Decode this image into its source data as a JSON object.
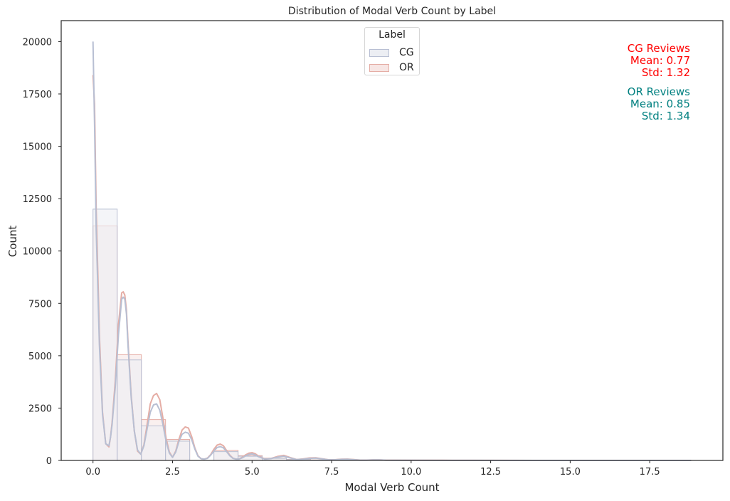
{
  "chart_data": {
    "type": "histogram",
    "title": "Distribution of Modal Verb Count by Label",
    "xlabel": "Modal Verb Count",
    "ylabel": "Count",
    "xlim": [
      -1,
      19.8
    ],
    "ylim": [
      0,
      21000
    ],
    "xticks": [
      0.0,
      2.5,
      5.0,
      7.5,
      10.0,
      12.5,
      15.0,
      17.5
    ],
    "xtick_labels": [
      "0.0",
      "2.5",
      "5.0",
      "7.5",
      "10.0",
      "12.5",
      "15.0",
      "17.5"
    ],
    "yticks": [
      0,
      2500,
      5000,
      7500,
      10000,
      12500,
      15000,
      17500,
      20000
    ],
    "ytick_labels": [
      "0",
      "2500",
      "5000",
      "7500",
      "10000",
      "12500",
      "15000",
      "17500",
      "20000"
    ],
    "grid": false,
    "legend": {
      "title": "Label",
      "placement": "top-center"
    },
    "bin_edges": [
      0.0,
      0.76,
      1.52,
      2.28,
      3.04,
      3.8,
      4.56,
      5.32,
      6.08,
      6.84,
      7.6,
      8.36,
      9.12,
      9.88,
      10.64
    ],
    "series": [
      {
        "name": "CG",
        "color": "#b8bfd3",
        "fill": "#eceef3",
        "counts": [
          12000,
          4800,
          1650,
          920,
          0,
          420,
          200,
          100,
          40,
          20,
          10,
          5,
          2,
          1
        ],
        "kde": {
          "x": [
            0,
            0.05,
            0.1,
            0.2,
            0.3,
            0.4,
            0.5,
            0.55,
            0.6,
            0.7,
            0.8,
            0.9,
            0.95,
            1.0,
            1.05,
            1.1,
            1.2,
            1.3,
            1.4,
            1.5,
            1.6,
            1.7,
            1.8,
            1.9,
            2.0,
            2.1,
            2.2,
            2.3,
            2.4,
            2.5,
            2.6,
            2.7,
            2.8,
            2.9,
            3.0,
            3.1,
            3.2,
            3.3,
            3.4,
            3.5,
            3.6,
            3.7,
            3.8,
            3.9,
            4.0,
            4.1,
            4.2,
            4.3,
            4.4,
            4.5,
            4.6,
            4.7,
            4.8,
            4.9,
            5.0,
            5.1,
            5.2,
            5.4,
            5.6,
            5.8,
            6.0,
            6.2,
            6.4,
            6.6,
            6.8,
            7.0,
            7.2,
            7.4,
            7.6,
            7.8,
            8.0,
            8.2,
            8.4,
            8.6,
            8.8,
            9.0,
            9.2,
            9.5,
            10.0,
            11.0,
            12.0,
            14.0,
            18.8
          ],
          "y": [
            20000,
            16000,
            11000,
            5500,
            2200,
            800,
            700,
            1100,
            1700,
            3500,
            6000,
            7700,
            7800,
            7700,
            7000,
            5500,
            3000,
            1400,
            500,
            300,
            700,
            1500,
            2300,
            2650,
            2700,
            2400,
            1700,
            900,
            350,
            150,
            400,
            900,
            1250,
            1350,
            1300,
            1000,
            550,
            200,
            80,
            60,
            100,
            250,
            450,
            620,
            660,
            600,
            420,
            220,
            100,
            60,
            70,
            130,
            220,
            290,
            310,
            270,
            180,
            60,
            90,
            160,
            200,
            120,
            40,
            60,
            100,
            110,
            70,
            30,
            30,
            50,
            55,
            35,
            15,
            15,
            25,
            25,
            12,
            10,
            8,
            5,
            3,
            1,
            0
          ]
        }
      },
      {
        "name": "OR",
        "color": "#e5ada5",
        "fill": "#f7e6e4",
        "counts": [
          11200,
          5050,
          1950,
          1000,
          0,
          480,
          230,
          110,
          50,
          25,
          12,
          6,
          3,
          1
        ],
        "kde": {
          "x": [
            0,
            0.05,
            0.1,
            0.2,
            0.3,
            0.4,
            0.5,
            0.55,
            0.6,
            0.7,
            0.8,
            0.9,
            0.95,
            1.0,
            1.05,
            1.1,
            1.2,
            1.3,
            1.4,
            1.5,
            1.6,
            1.7,
            1.8,
            1.9,
            2.0,
            2.1,
            2.2,
            2.3,
            2.4,
            2.5,
            2.6,
            2.7,
            2.8,
            2.9,
            3.0,
            3.1,
            3.2,
            3.3,
            3.4,
            3.5,
            3.6,
            3.7,
            3.8,
            3.9,
            4.0,
            4.1,
            4.2,
            4.3,
            4.4,
            4.5,
            4.6,
            4.7,
            4.8,
            4.9,
            5.0,
            5.1,
            5.2,
            5.4,
            5.6,
            5.8,
            6.0,
            6.2,
            6.4,
            6.6,
            6.8,
            7.0,
            7.2,
            7.4,
            7.6,
            7.8,
            8.0,
            8.2,
            8.4,
            8.6,
            8.8,
            9.0,
            9.2,
            9.5,
            10.0,
            11.0,
            12.0,
            14.0,
            18.8
          ],
          "y": [
            18400,
            17000,
            12000,
            6000,
            2300,
            800,
            650,
            1100,
            1800,
            3800,
            6500,
            8000,
            8050,
            7900,
            7200,
            5700,
            3100,
            1400,
            450,
            300,
            750,
            1700,
            2700,
            3100,
            3200,
            2900,
            2000,
            1050,
            400,
            150,
            450,
            1000,
            1450,
            1600,
            1550,
            1150,
            600,
            220,
            80,
            60,
            120,
            280,
            530,
            730,
            780,
            700,
            470,
            250,
            110,
            60,
            80,
            160,
            270,
            350,
            370,
            320,
            210,
            70,
            100,
            190,
            240,
            140,
            45,
            70,
            120,
            130,
            80,
            35,
            35,
            60,
            65,
            40,
            18,
            18,
            30,
            30,
            14,
            12,
            10,
            6,
            4,
            1,
            0
          ]
        }
      }
    ],
    "annotations": [
      {
        "lines": [
          "CG Reviews",
          "Mean: 0.77",
          "Std: 1.32"
        ],
        "color": "#ff0000"
      },
      {
        "lines": [
          "OR Reviews",
          "Mean: 0.85",
          "Std: 1.34"
        ],
        "color": "#008080"
      }
    ]
  }
}
